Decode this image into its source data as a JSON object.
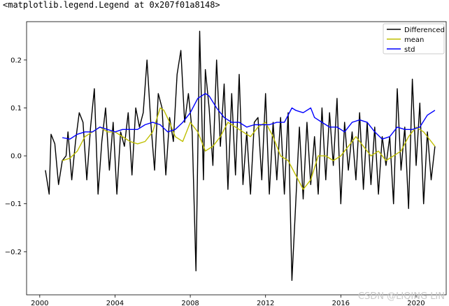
{
  "output_repr": "<matplotlib.legend.Legend at 0x207f01a8148>",
  "watermark": "CSDN @LIQING LIN",
  "colors": {
    "differenced": "#000000",
    "mean": "#bfbf00",
    "std": "#0000ff",
    "axes": "#000000"
  },
  "chart_data": {
    "type": "line",
    "title": "",
    "xlabel": "",
    "ylabel": "",
    "xlim": [
      1999.3,
      2021.6
    ],
    "ylim": [
      -0.29,
      0.28
    ],
    "x_ticks": [
      2000,
      2004,
      2008,
      2012,
      2016,
      2020
    ],
    "x_tick_labels": [
      "2000",
      "2004",
      "2008",
      "2012",
      "2016",
      "2020"
    ],
    "y_ticks": [
      0.2,
      0.1,
      0.0,
      -0.1,
      -0.2
    ],
    "y_tick_labels": [
      "0.2",
      "0.1",
      "0.0",
      "−0.1",
      "−0.2"
    ],
    "grid": false,
    "legend_position": "top-right",
    "series": [
      {
        "name": "Differenced",
        "x": [
          2000.3,
          2000.5,
          2000.6,
          2000.8,
          2001.0,
          2001.2,
          2001.4,
          2001.5,
          2001.7,
          2001.9,
          2002.1,
          2002.3,
          2002.5,
          2002.7,
          2002.9,
          2003.1,
          2003.3,
          2003.5,
          2003.7,
          2003.9,
          2004.1,
          2004.3,
          2004.5,
          2004.7,
          2004.9,
          2005.1,
          2005.3,
          2005.5,
          2005.7,
          2005.9,
          2006.1,
          2006.3,
          2006.5,
          2006.7,
          2006.9,
          2007.1,
          2007.3,
          2007.5,
          2007.7,
          2007.9,
          2008.1,
          2008.3,
          2008.5,
          2008.7,
          2008.8,
          2009.0,
          2009.2,
          2009.4,
          2009.6,
          2009.8,
          2010.0,
          2010.2,
          2010.4,
          2010.6,
          2010.8,
          2011.0,
          2011.2,
          2011.4,
          2011.6,
          2011.8,
          2012.0,
          2012.2,
          2012.4,
          2012.6,
          2012.8,
          2013.0,
          2013.2,
          2013.4,
          2013.6,
          2013.8,
          2014.0,
          2014.2,
          2014.4,
          2014.6,
          2014.8,
          2015.0,
          2015.2,
          2015.4,
          2015.6,
          2015.8,
          2016.0,
          2016.2,
          2016.4,
          2016.6,
          2016.8,
          2017.0,
          2017.2,
          2017.4,
          2017.6,
          2017.8,
          2018.0,
          2018.2,
          2018.4,
          2018.6,
          2018.8,
          2019.0,
          2019.2,
          2019.4,
          2019.6,
          2019.8,
          2020.0,
          2020.2,
          2020.4,
          2020.6,
          2020.8,
          2021.0
        ],
        "y": [
          -0.03,
          -0.08,
          0.045,
          0.025,
          -0.06,
          -0.01,
          0.0,
          0.05,
          -0.05,
          0.03,
          0.09,
          0.07,
          -0.05,
          0.06,
          0.14,
          -0.08,
          0.03,
          0.1,
          -0.03,
          0.07,
          -0.08,
          0.05,
          0.02,
          0.09,
          -0.04,
          0.1,
          0.06,
          0.09,
          0.2,
          0.07,
          -0.03,
          0.13,
          0.1,
          -0.04,
          0.08,
          0.03,
          0.17,
          0.22,
          0.07,
          0.13,
          0.05,
          -0.24,
          0.26,
          -0.05,
          0.18,
          0.1,
          -0.02,
          0.2,
          0.02,
          0.15,
          -0.07,
          0.13,
          -0.04,
          0.17,
          -0.06,
          0.05,
          -0.08,
          0.07,
          0.08,
          -0.05,
          0.13,
          -0.08,
          0.07,
          -0.05,
          0.08,
          -0.08,
          0.09,
          -0.26,
          -0.1,
          0.06,
          -0.09,
          0.07,
          -0.06,
          0.04,
          -0.08,
          0.1,
          -0.05,
          0.09,
          -0.02,
          0.12,
          -0.1,
          0.07,
          -0.03,
          0.05,
          -0.05,
          0.09,
          -0.07,
          0.07,
          -0.06,
          0.06,
          -0.08,
          0.04,
          -0.02,
          0.04,
          -0.1,
          0.14,
          -0.03,
          0.06,
          -0.11,
          0.16,
          -0.02,
          0.11,
          -0.1,
          0.05,
          -0.05,
          0.02
        ],
        "color": "#000000"
      },
      {
        "name": "mean",
        "x": [
          2001.2,
          2001.6,
          2002.0,
          2002.4,
          2002.8,
          2003.2,
          2003.6,
          2004.0,
          2004.4,
          2004.8,
          2005.2,
          2005.6,
          2006.0,
          2006.4,
          2006.6,
          2006.9,
          2007.2,
          2007.6,
          2008.0,
          2008.4,
          2008.8,
          2009.2,
          2009.6,
          2010.0,
          2010.4,
          2010.8,
          2011.2,
          2011.6,
          2012.0,
          2012.4,
          2012.8,
          2013.2,
          2013.6,
          2014.0,
          2014.4,
          2014.8,
          2015.2,
          2015.6,
          2016.0,
          2016.4,
          2016.8,
          2017.2,
          2017.6,
          2018.0,
          2018.4,
          2018.8,
          2019.2,
          2019.6,
          2020.0,
          2020.4,
          2020.8,
          2021.0
        ],
        "y": [
          -0.01,
          -0.005,
          0.01,
          0.04,
          0.05,
          0.06,
          0.05,
          0.05,
          0.04,
          0.03,
          0.025,
          0.03,
          0.05,
          0.1,
          0.095,
          0.07,
          0.04,
          0.03,
          0.07,
          0.05,
          0.01,
          0.02,
          0.04,
          0.07,
          0.06,
          0.05,
          0.04,
          0.06,
          0.07,
          0.04,
          0.0,
          -0.01,
          -0.04,
          -0.07,
          -0.05,
          0.0,
          0.0,
          -0.01,
          0.0,
          0.02,
          0.04,
          0.02,
          0.0,
          0.01,
          -0.01,
          0.0,
          0.01,
          0.04,
          0.06,
          0.05,
          0.03,
          0.02
        ],
        "color": "#bfbf00"
      },
      {
        "name": "std",
        "x": [
          2001.2,
          2001.6,
          2002.0,
          2002.4,
          2002.8,
          2003.2,
          2003.6,
          2004.0,
          2004.4,
          2004.8,
          2005.2,
          2005.6,
          2006.0,
          2006.4,
          2006.8,
          2007.2,
          2007.6,
          2008.0,
          2008.4,
          2008.8,
          2009.0,
          2009.4,
          2009.8,
          2010.2,
          2010.6,
          2011.0,
          2011.4,
          2011.8,
          2012.2,
          2012.6,
          2013.0,
          2013.4,
          2013.6,
          2014.0,
          2014.4,
          2014.6,
          2015.0,
          2015.4,
          2015.8,
          2016.2,
          2016.6,
          2017.0,
          2017.4,
          2017.8,
          2018.2,
          2018.6,
          2019.0,
          2019.4,
          2019.8,
          2020.2,
          2020.6,
          2021.0
        ],
        "y": [
          0.038,
          0.035,
          0.045,
          0.05,
          0.05,
          0.06,
          0.055,
          0.05,
          0.055,
          0.055,
          0.055,
          0.065,
          0.07,
          0.065,
          0.05,
          0.055,
          0.07,
          0.09,
          0.12,
          0.13,
          0.125,
          0.1,
          0.08,
          0.07,
          0.07,
          0.06,
          0.065,
          0.065,
          0.065,
          0.07,
          0.07,
          0.1,
          0.095,
          0.09,
          0.1,
          0.08,
          0.07,
          0.06,
          0.06,
          0.05,
          0.07,
          0.075,
          0.07,
          0.05,
          0.035,
          0.04,
          0.06,
          0.055,
          0.055,
          0.06,
          0.085,
          0.095
        ],
        "color": "#0000ff"
      }
    ]
  }
}
